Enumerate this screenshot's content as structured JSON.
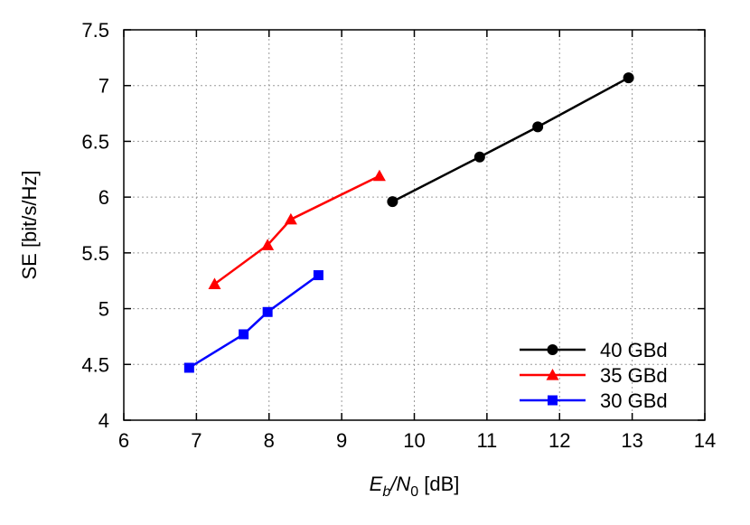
{
  "chart_data": {
    "type": "line",
    "title": "",
    "xlabel_parts": [
      "E",
      "b",
      "/N",
      "0",
      " [dB]"
    ],
    "ylabel": "SE [bit/s/Hz]",
    "xlim": [
      6,
      14
    ],
    "ylim": [
      4,
      7.5
    ],
    "xticks": [
      6,
      7,
      8,
      9,
      10,
      11,
      12,
      13,
      14
    ],
    "yticks": [
      4,
      4.5,
      5,
      5.5,
      6,
      6.5,
      7,
      7.5
    ],
    "xtick_labels": [
      "6",
      "7",
      "8",
      "9",
      "10",
      "11",
      "12",
      "13",
      "14"
    ],
    "ytick_labels": [
      "4",
      "4.5",
      "5",
      "5.5",
      "6",
      "6.5",
      "7",
      "7.5"
    ],
    "grid": true,
    "legend_position": "bottom-right",
    "series": [
      {
        "name": "40 GBd",
        "color": "#000000",
        "marker": "circle",
        "x": [
          9.7,
          10.9,
          11.7,
          12.95
        ],
        "y": [
          5.96,
          6.36,
          6.63,
          7.07
        ]
      },
      {
        "name": "35 GBd",
        "color": "#ff0000",
        "marker": "triangle",
        "x": [
          7.25,
          7.98,
          8.3,
          9.52
        ],
        "y": [
          5.22,
          5.57,
          5.8,
          6.19
        ]
      },
      {
        "name": "30 GBd",
        "color": "#0000ff",
        "marker": "square",
        "x": [
          6.9,
          7.65,
          7.98,
          8.68
        ],
        "y": [
          4.47,
          4.77,
          4.97,
          5.3
        ]
      }
    ]
  }
}
